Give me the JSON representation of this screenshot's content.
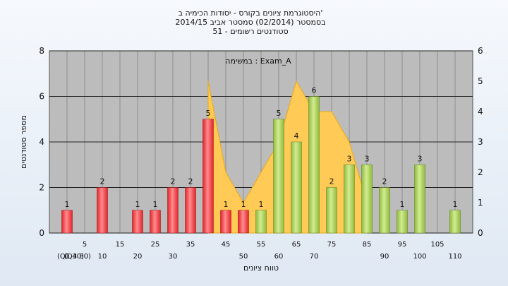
{
  "chart_data": {
    "type": "bar",
    "title_lines": [
      "היסטוגרמת ציונים בקורס - יסודות הכימיה ב'",
      "בסמסטר  (02/2014)  סמסטר אביב 2014/15",
      "51 - סטודנטים רשומים"
    ],
    "ylabel": "מספר סטודנטים",
    "xlabel": "טווח ציונים",
    "annotation": "במשימה : Exam_A",
    "ylim": [
      0,
      8
    ],
    "y2lim": [
      0,
      6
    ],
    "y_ticks": [
      0,
      2,
      4,
      6,
      8
    ],
    "y2_ticks": [
      0,
      1,
      2,
      3,
      4,
      5,
      6
    ],
    "grid": true,
    "x_ticks_top": [
      "5",
      "15",
      "25",
      "35",
      "45",
      "55",
      "65",
      "75",
      "85",
      "95",
      "105"
    ],
    "x_ticks_bottom": [
      "0",
      "10",
      "20",
      "30",
      "(Q1 40)",
      "50",
      "60",
      "70",
      "(Q3 80)",
      "90",
      "100",
      "110"
    ],
    "bars": [
      {
        "x": 0,
        "value": 1,
        "label": "1",
        "group": "red"
      },
      {
        "x": 10,
        "value": 2,
        "label": "2",
        "group": "red"
      },
      {
        "x": 20,
        "value": 1,
        "label": "1",
        "group": "red"
      },
      {
        "x": 25,
        "value": 1,
        "label": "1",
        "group": "red"
      },
      {
        "x": 30,
        "value": 2,
        "label": "2",
        "group": "red"
      },
      {
        "x": 35,
        "value": 2,
        "label": "2",
        "group": "red"
      },
      {
        "x": 40,
        "value": 5,
        "label": "5",
        "group": "red"
      },
      {
        "x": 45,
        "value": 1,
        "label": "1",
        "group": "red"
      },
      {
        "x": 50,
        "value": 1,
        "label": "1",
        "group": "red"
      },
      {
        "x": 55,
        "value": 1,
        "label": "1",
        "group": "green"
      },
      {
        "x": 60,
        "value": 5,
        "label": "5",
        "group": "green"
      },
      {
        "x": 65,
        "value": 4,
        "label": "4",
        "group": "green"
      },
      {
        "x": 70,
        "value": 6,
        "label": "6",
        "group": "green"
      },
      {
        "x": 75,
        "value": 2,
        "label": "2",
        "group": "green"
      },
      {
        "x": 80,
        "value": 3,
        "label": "3",
        "group": "green"
      },
      {
        "x": 85,
        "value": 3,
        "label": "3",
        "group": "green"
      },
      {
        "x": 90,
        "value": 2,
        "label": "2",
        "group": "green"
      },
      {
        "x": 95,
        "value": 1,
        "label": "1",
        "group": "green"
      },
      {
        "x": 100,
        "value": 3,
        "label": "3",
        "group": "green"
      },
      {
        "x": 110,
        "value": 1,
        "label": "1",
        "group": "green"
      }
    ],
    "area": {
      "x": [
        40,
        45,
        50,
        55,
        60,
        65,
        70,
        75,
        80,
        85
      ],
      "y": [
        5,
        2,
        1,
        2,
        3,
        5,
        4,
        4,
        3,
        1
      ]
    },
    "colors": {
      "plot_bg": "#bcbcbc",
      "grid": "#8e8e8e",
      "red_bar": "#e0252b",
      "red_bar_light": "#ff8b8e",
      "green_bar": "#8fbb3b",
      "green_bar_light": "#d3eb92",
      "area_fill": "#ffca55",
      "area_stroke": "#e9a818"
    }
  }
}
